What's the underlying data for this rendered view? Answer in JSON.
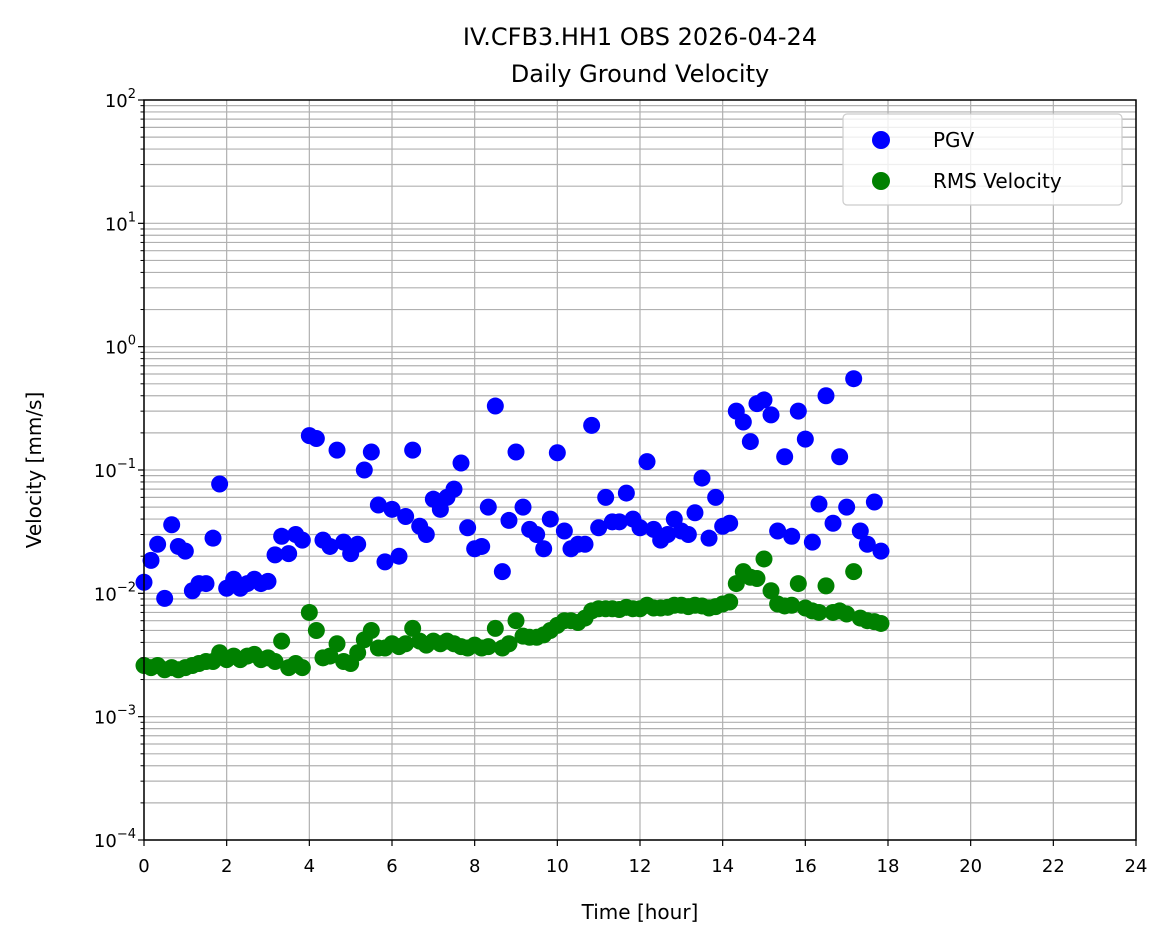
{
  "chart_data": {
    "type": "scatter",
    "title": "IV.CFB3.HH1 OBS 2026-04-24",
    "subtitle": "Daily Ground Velocity",
    "xlabel": "Time [hour]",
    "ylabel": "Velocity [mm/s]",
    "xlim": [
      0,
      24
    ],
    "ylim": [
      0.0001,
      100
    ],
    "yscale": "log",
    "grid": true,
    "grid_minor_y": true,
    "legend_position": "top-right",
    "x_ticks": [
      "0",
      "2",
      "4",
      "6",
      "8",
      "10",
      "12",
      "14",
      "16",
      "18",
      "20",
      "22",
      "24"
    ],
    "y_ticks": [
      {
        "base": "10",
        "exp": "−4",
        "value": 0.0001
      },
      {
        "base": "10",
        "exp": "−3",
        "value": 0.001
      },
      {
        "base": "10",
        "exp": "−2",
        "value": 0.01
      },
      {
        "base": "10",
        "exp": "−1",
        "value": 0.1
      },
      {
        "base": "10",
        "exp": "0",
        "value": 1
      },
      {
        "base": "10",
        "exp": "1",
        "value": 10
      },
      {
        "base": "10",
        "exp": "2",
        "value": 100
      }
    ],
    "series": [
      {
        "name": "PGV",
        "color": "#0000ff",
        "points": [
          [
            0.0,
            0.0123
          ],
          [
            0.17,
            0.0185
          ],
          [
            0.33,
            0.025
          ],
          [
            0.5,
            0.0091
          ],
          [
            0.67,
            0.036
          ],
          [
            0.83,
            0.024
          ],
          [
            1.0,
            0.022
          ],
          [
            1.17,
            0.0105
          ],
          [
            1.33,
            0.012
          ],
          [
            1.5,
            0.012
          ],
          [
            1.67,
            0.028
          ],
          [
            1.83,
            0.077
          ],
          [
            2.0,
            0.011
          ],
          [
            2.17,
            0.013
          ],
          [
            2.33,
            0.011
          ],
          [
            2.5,
            0.012
          ],
          [
            2.67,
            0.013
          ],
          [
            2.83,
            0.012
          ],
          [
            3.0,
            0.0125
          ],
          [
            3.17,
            0.0205
          ],
          [
            3.33,
            0.029
          ],
          [
            3.5,
            0.021
          ],
          [
            3.67,
            0.03
          ],
          [
            3.83,
            0.027
          ],
          [
            4.0,
            0.19
          ],
          [
            4.17,
            0.18
          ],
          [
            4.33,
            0.027
          ],
          [
            4.5,
            0.024
          ],
          [
            4.67,
            0.145
          ],
          [
            4.83,
            0.026
          ],
          [
            5.0,
            0.021
          ],
          [
            5.17,
            0.025
          ],
          [
            5.33,
            0.1
          ],
          [
            5.5,
            0.14
          ],
          [
            5.67,
            0.052
          ],
          [
            5.83,
            0.018
          ],
          [
            6.0,
            0.048
          ],
          [
            6.17,
            0.02
          ],
          [
            6.33,
            0.042
          ],
          [
            6.5,
            0.145
          ],
          [
            6.67,
            0.035
          ],
          [
            6.83,
            0.03
          ],
          [
            7.0,
            0.058
          ],
          [
            7.17,
            0.048
          ],
          [
            7.33,
            0.06
          ],
          [
            7.5,
            0.07
          ],
          [
            7.67,
            0.114
          ],
          [
            7.83,
            0.034
          ],
          [
            8.0,
            0.023
          ],
          [
            8.17,
            0.024
          ],
          [
            8.33,
            0.05
          ],
          [
            8.5,
            0.33
          ],
          [
            8.67,
            0.015
          ],
          [
            8.83,
            0.039
          ],
          [
            9.0,
            0.14
          ],
          [
            9.17,
            0.05
          ],
          [
            9.33,
            0.033
          ],
          [
            9.5,
            0.03
          ],
          [
            9.67,
            0.023
          ],
          [
            9.83,
            0.04
          ],
          [
            10.0,
            0.138
          ],
          [
            10.17,
            0.032
          ],
          [
            10.33,
            0.023
          ],
          [
            10.5,
            0.025
          ],
          [
            10.67,
            0.025
          ],
          [
            10.83,
            0.23
          ],
          [
            11.0,
            0.034
          ],
          [
            11.17,
            0.06
          ],
          [
            11.33,
            0.038
          ],
          [
            11.5,
            0.038
          ],
          [
            11.67,
            0.065
          ],
          [
            11.83,
            0.04
          ],
          [
            12.0,
            0.034
          ],
          [
            12.17,
            0.117
          ],
          [
            12.33,
            0.033
          ],
          [
            12.5,
            0.027
          ],
          [
            12.67,
            0.03
          ],
          [
            12.83,
            0.04
          ],
          [
            13.0,
            0.032
          ],
          [
            13.17,
            0.03
          ],
          [
            13.33,
            0.045
          ],
          [
            13.5,
            0.086
          ],
          [
            13.67,
            0.028
          ],
          [
            13.83,
            0.06
          ],
          [
            14.0,
            0.035
          ],
          [
            14.17,
            0.037
          ],
          [
            14.33,
            0.3
          ],
          [
            14.5,
            0.245
          ],
          [
            14.67,
            0.17
          ],
          [
            14.83,
            0.345
          ],
          [
            15.0,
            0.37
          ],
          [
            15.17,
            0.28
          ],
          [
            15.33,
            0.032
          ],
          [
            15.5,
            0.128
          ],
          [
            15.67,
            0.029
          ],
          [
            15.83,
            0.3
          ],
          [
            16.0,
            0.178
          ],
          [
            16.17,
            0.026
          ],
          [
            16.33,
            0.053
          ],
          [
            16.5,
            0.4
          ],
          [
            16.67,
            0.037
          ],
          [
            16.83,
            0.128
          ],
          [
            17.0,
            0.05
          ],
          [
            17.17,
            0.55
          ],
          [
            17.33,
            0.032
          ],
          [
            17.5,
            0.025
          ],
          [
            17.67,
            0.055
          ],
          [
            17.83,
            0.022
          ]
        ]
      },
      {
        "name": "RMS Velocity",
        "color": "#008000",
        "points": [
          [
            0.0,
            0.0026
          ],
          [
            0.17,
            0.0025
          ],
          [
            0.33,
            0.0026
          ],
          [
            0.5,
            0.0024
          ],
          [
            0.67,
            0.0025
          ],
          [
            0.83,
            0.0024
          ],
          [
            1.0,
            0.0025
          ],
          [
            1.17,
            0.0026
          ],
          [
            1.33,
            0.0027
          ],
          [
            1.5,
            0.0028
          ],
          [
            1.67,
            0.0028
          ],
          [
            1.83,
            0.0033
          ],
          [
            2.0,
            0.0029
          ],
          [
            2.17,
            0.0031
          ],
          [
            2.33,
            0.0029
          ],
          [
            2.5,
            0.0031
          ],
          [
            2.67,
            0.0032
          ],
          [
            2.83,
            0.0029
          ],
          [
            3.0,
            0.003
          ],
          [
            3.17,
            0.0028
          ],
          [
            3.33,
            0.0041
          ],
          [
            3.5,
            0.0025
          ],
          [
            3.67,
            0.0027
          ],
          [
            3.83,
            0.0025
          ],
          [
            4.0,
            0.007
          ],
          [
            4.17,
            0.005
          ],
          [
            4.33,
            0.003
          ],
          [
            4.5,
            0.0031
          ],
          [
            4.67,
            0.0039
          ],
          [
            4.83,
            0.0028
          ],
          [
            5.0,
            0.0027
          ],
          [
            5.17,
            0.0033
          ],
          [
            5.33,
            0.0042
          ],
          [
            5.5,
            0.005
          ],
          [
            5.67,
            0.0036
          ],
          [
            5.83,
            0.0036
          ],
          [
            6.0,
            0.0039
          ],
          [
            6.17,
            0.0037
          ],
          [
            6.33,
            0.0039
          ],
          [
            6.5,
            0.0052
          ],
          [
            6.67,
            0.0041
          ],
          [
            6.83,
            0.0038
          ],
          [
            7.0,
            0.0041
          ],
          [
            7.17,
            0.0039
          ],
          [
            7.33,
            0.0041
          ],
          [
            7.5,
            0.0039
          ],
          [
            7.67,
            0.0037
          ],
          [
            7.83,
            0.0036
          ],
          [
            8.0,
            0.0038
          ],
          [
            8.17,
            0.0036
          ],
          [
            8.33,
            0.0037
          ],
          [
            8.5,
            0.0052
          ],
          [
            8.67,
            0.0036
          ],
          [
            8.83,
            0.0039
          ],
          [
            9.0,
            0.006
          ],
          [
            9.17,
            0.0045
          ],
          [
            9.33,
            0.0044
          ],
          [
            9.5,
            0.0044
          ],
          [
            9.67,
            0.0046
          ],
          [
            9.83,
            0.005
          ],
          [
            10.0,
            0.0055
          ],
          [
            10.17,
            0.006
          ],
          [
            10.33,
            0.006
          ],
          [
            10.5,
            0.0058
          ],
          [
            10.67,
            0.0063
          ],
          [
            10.83,
            0.0072
          ],
          [
            11.0,
            0.0075
          ],
          [
            11.17,
            0.0075
          ],
          [
            11.33,
            0.0075
          ],
          [
            11.5,
            0.0074
          ],
          [
            11.67,
            0.0077
          ],
          [
            11.83,
            0.0075
          ],
          [
            12.0,
            0.0075
          ],
          [
            12.17,
            0.008
          ],
          [
            12.33,
            0.0076
          ],
          [
            12.5,
            0.0076
          ],
          [
            12.67,
            0.0077
          ],
          [
            12.83,
            0.008
          ],
          [
            13.0,
            0.008
          ],
          [
            13.17,
            0.0078
          ],
          [
            13.33,
            0.008
          ],
          [
            13.5,
            0.0079
          ],
          [
            13.67,
            0.0076
          ],
          [
            13.83,
            0.0078
          ],
          [
            14.0,
            0.0082
          ],
          [
            14.17,
            0.0085
          ],
          [
            14.33,
            0.012
          ],
          [
            14.5,
            0.015
          ],
          [
            14.67,
            0.0135
          ],
          [
            14.83,
            0.0132
          ],
          [
            15.0,
            0.019
          ],
          [
            15.17,
            0.0105
          ],
          [
            15.33,
            0.0082
          ],
          [
            15.5,
            0.0079
          ],
          [
            15.67,
            0.008
          ],
          [
            15.83,
            0.012
          ],
          [
            16.0,
            0.0076
          ],
          [
            16.17,
            0.0072
          ],
          [
            16.33,
            0.007
          ],
          [
            16.5,
            0.0115
          ],
          [
            16.67,
            0.007
          ],
          [
            16.83,
            0.0072
          ],
          [
            17.0,
            0.0068
          ],
          [
            17.17,
            0.015
          ],
          [
            17.33,
            0.0063
          ],
          [
            17.5,
            0.006
          ],
          [
            17.67,
            0.0059
          ],
          [
            17.83,
            0.0057
          ]
        ]
      }
    ]
  }
}
